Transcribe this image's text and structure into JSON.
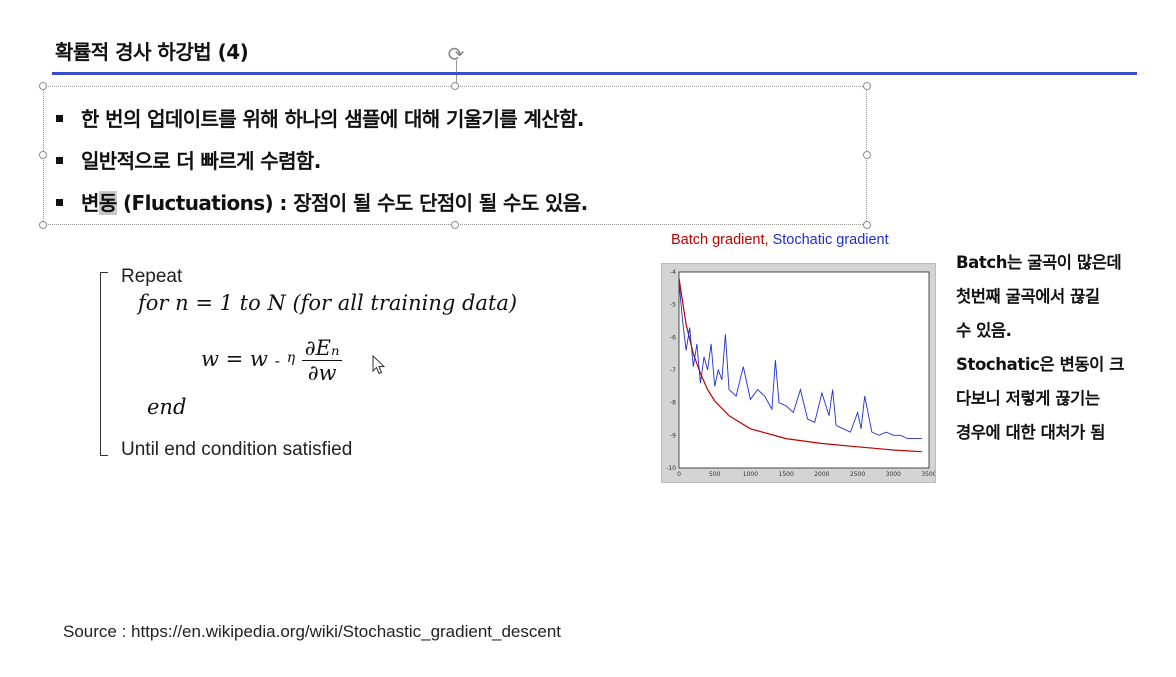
{
  "slide": {
    "title": "확률적 경사 하강법 (4)",
    "accent_color": "#3b4ccf",
    "bullets": [
      {
        "pre": "한 번의 업데이트를 위해 하나의 샘플에 대해 기울기를 계산함.",
        "hl": "",
        "post": ""
      },
      {
        "pre": "일반적으로 더 빠르게 수렴함.",
        "hl": "",
        "post": ""
      },
      {
        "pre": "변",
        "hl": "동",
        "post": " (Fluctuations) : 장점이 될 수도 단점이 될 수도 있음."
      }
    ]
  },
  "algorithm": {
    "repeat": "Repeat",
    "for_line": "for n = 1  to N  (for all training data)",
    "update_lhs": "w = w",
    "update_minus": "-",
    "update_eta": "η",
    "frac_num": "∂Eₙ",
    "frac_den": "∂w",
    "end": "end",
    "until": "Until end condition satisfied"
  },
  "chart": {
    "caption_batch": "Batch gradient,",
    "caption_stochastic": "Stochatic gradient",
    "batch_color": "#c00000",
    "stochastic_color": "#1f2fd0"
  },
  "chart_data": {
    "type": "line",
    "xlim": [
      0,
      3500
    ],
    "ylim": [
      -10,
      -4
    ],
    "x_ticks": [
      "0",
      "500",
      "1000",
      "1500",
      "2000",
      "2500",
      "3000",
      "3500"
    ],
    "y_ticks": [
      "-4",
      "-5",
      "-6",
      "-7",
      "-8",
      "-9",
      "-10"
    ],
    "series": [
      {
        "name": "Batch gradient",
        "color": "#c00000",
        "x": [
          0,
          100,
          200,
          300,
          400,
          500,
          700,
          1000,
          1500,
          2000,
          2500,
          3000,
          3400
        ],
        "y": [
          -4.2,
          -5.6,
          -6.5,
          -7.1,
          -7.6,
          -7.95,
          -8.4,
          -8.8,
          -9.1,
          -9.25,
          -9.35,
          -9.45,
          -9.5
        ]
      },
      {
        "name": "Stochatic gradient",
        "color": "#1f2fd0",
        "x": [
          0,
          50,
          100,
          150,
          200,
          250,
          300,
          350,
          400,
          450,
          500,
          550,
          600,
          650,
          700,
          800,
          900,
          1000,
          1100,
          1200,
          1300,
          1350,
          1400,
          1500,
          1600,
          1700,
          1800,
          1900,
          2000,
          2100,
          2150,
          2200,
          2300,
          2400,
          2500,
          2550,
          2600,
          2700,
          2800,
          2900,
          3000,
          3100,
          3200,
          3300,
          3400
        ],
        "y": [
          -4.3,
          -5.5,
          -6.4,
          -5.7,
          -6.9,
          -6.2,
          -7.4,
          -6.6,
          -7.0,
          -6.2,
          -7.5,
          -7.0,
          -7.3,
          -5.9,
          -7.6,
          -7.8,
          -6.9,
          -7.9,
          -7.6,
          -7.8,
          -8.2,
          -6.7,
          -8.0,
          -8.1,
          -8.3,
          -7.6,
          -8.5,
          -8.6,
          -7.7,
          -8.4,
          -7.6,
          -8.7,
          -8.8,
          -8.9,
          -8.3,
          -8.8,
          -7.8,
          -8.9,
          -9.0,
          -8.9,
          -9.0,
          -9.0,
          -9.1,
          -9.1,
          -9.1
        ]
      }
    ]
  },
  "note": {
    "lines": [
      "Batch는 굴곡이 많은데",
      "첫번째 굴곡에서 끊길",
      "수 있음.",
      "Stochatic은 변동이 크",
      "다보니 저렇게 끊기는",
      "경우에 대한 대처가 됨"
    ]
  },
  "source": "Source : https://en.wikipedia.org/wiki/Stochastic_gradient_descent"
}
